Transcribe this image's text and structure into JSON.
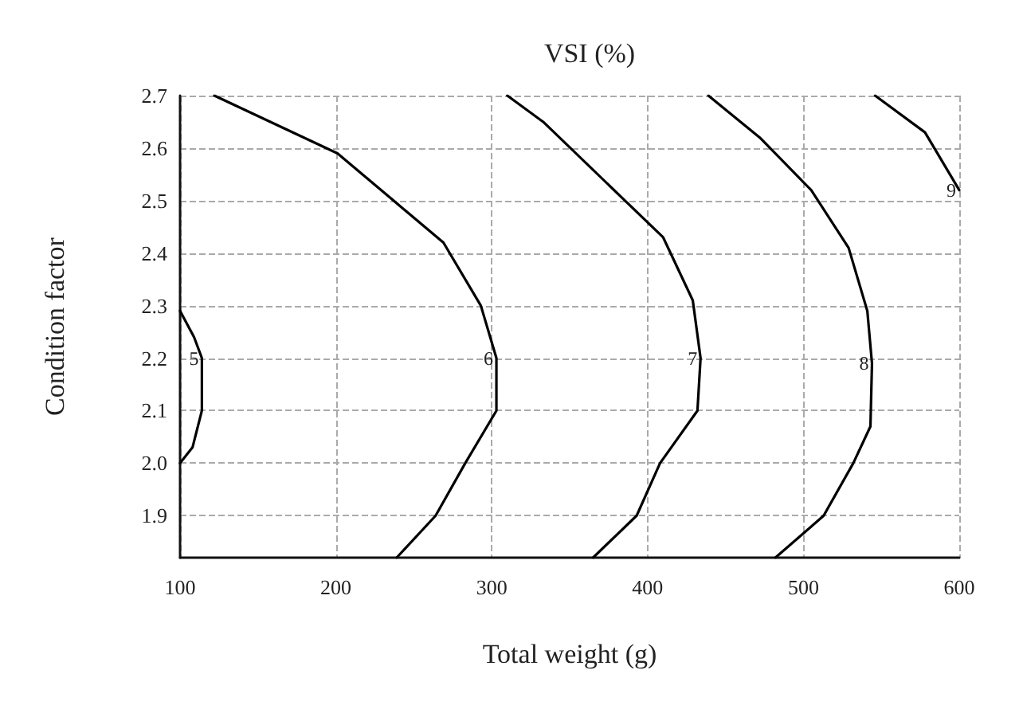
{
  "chart_data": {
    "type": "line",
    "title": "VSI (%)",
    "xlabel": "Total weight (g)",
    "ylabel": "Condition factor",
    "xlim": [
      100,
      600
    ],
    "xticks": [
      100,
      200,
      300,
      400,
      500,
      600
    ],
    "ylim": [
      1.82,
      2.7
    ],
    "yticks": [
      1.9,
      {
        "value": 2,
        "label": "2.0"
      },
      2.1,
      2.2,
      2.3,
      2.4,
      2.5,
      2.6,
      2.7
    ],
    "grid": true,
    "legend": false,
    "marker": "none",
    "line_style": "solid",
    "series": [
      {
        "name": "5",
        "color": "#000000",
        "x": [
          100,
          109,
          114,
          114,
          108,
          100
        ],
        "values": [
          2.29,
          2.24,
          2.2,
          2.1,
          2.03,
          2.0
        ]
      },
      {
        "name": "6",
        "color": "#000000",
        "x": [
          122,
          201,
          237,
          269,
          293,
          303,
          303,
          283,
          264,
          239
        ],
        "values": [
          2.7,
          2.59,
          2.5,
          2.42,
          2.3,
          2.2,
          2.1,
          2.0,
          1.9,
          1.82
        ]
      },
      {
        "name": "7",
        "color": "#000000",
        "x": [
          310,
          333,
          410,
          429,
          434,
          432,
          408,
          393,
          365
        ],
        "values": [
          2.7,
          2.65,
          2.43,
          2.31,
          2.2,
          2.1,
          2.0,
          1.9,
          1.82
        ]
      },
      {
        "name": "8",
        "color": "#000000",
        "x": [
          439,
          472,
          505,
          529,
          541,
          544,
          543,
          532,
          513,
          482
        ],
        "values": [
          2.7,
          2.62,
          2.52,
          2.41,
          2.29,
          2.19,
          2.07,
          2.0,
          1.9,
          1.82
        ]
      },
      {
        "name": "9",
        "color": "#000000",
        "x": [
          546,
          578,
          600
        ],
        "values": [
          2.7,
          2.63,
          2.52
        ]
      }
    ]
  }
}
